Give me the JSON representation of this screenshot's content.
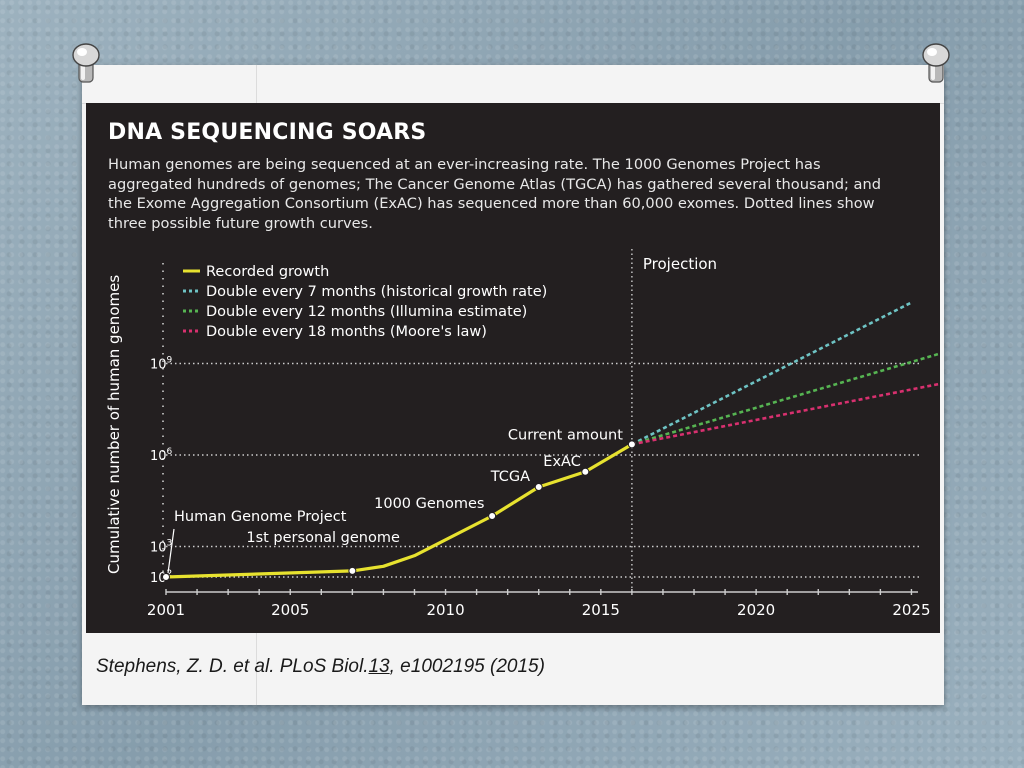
{
  "citation": {
    "prefix": "Stephens, Z. D. et al. PLoS Biol.",
    "volume": "13",
    "suffix": ", e1002195 (2015)"
  },
  "figure": {
    "title": "DNA SEQUENCING SOARS",
    "description_lines": [
      "Human genomes are being sequenced at an ever-increasing rate. The 1000 Genomes Project has",
      "aggregated hundreds of genomes; The Cancer Genome Atlas (TGCA) has gathered several thousand; and",
      "the Exome Aggregation Consortium (ExAC) has sequenced more than 60,000 exomes. Dotted lines show",
      "three possible future growth curves."
    ]
  },
  "chart_data": {
    "type": "line",
    "title": "DNA SEQUENCING SOARS",
    "xlabel": "",
    "ylabel": "Cumulative number of human genomes",
    "y_scale": "log10",
    "xlim": [
      2001,
      2026
    ],
    "ylim_log10": [
      2,
      10
    ],
    "x_ticks": [
      2001,
      2005,
      2010,
      2015,
      2020,
      2025
    ],
    "x_tick_labels": [
      "2001",
      "2005",
      "2010",
      "2015",
      "2020",
      "2025"
    ],
    "y_ticks_log10": [
      2,
      3,
      6,
      9
    ],
    "y_tick_labels": [
      {
        "base": "10",
        "exp": "2"
      },
      {
        "base": "10",
        "exp": "3"
      },
      {
        "base": "10",
        "exp": "6"
      },
      {
        "base": "10",
        "exp": "9"
      }
    ],
    "grid": "dotted horizontal at labeled ticks",
    "projection_year": 2016,
    "projection_label": "Projection",
    "legend_position": "top-left",
    "colors": {
      "background": "#231f20",
      "recorded": "#e7e22f",
      "double_7": "#6ec3c4",
      "double_12": "#56b452",
      "double_18": "#d8306f",
      "text": "#ffffff",
      "grid": "#cccccc"
    },
    "series": [
      {
        "name": "Recorded growth",
        "style": "solid",
        "points": [
          {
            "x": 2001,
            "y_log10": 2.0
          },
          {
            "x": 2007,
            "y_log10": 2.2
          },
          {
            "x": 2008,
            "y_log10": 2.35
          },
          {
            "x": 2009,
            "y_log10": 2.7
          },
          {
            "x": 2011.5,
            "y_log10": 4.0
          },
          {
            "x": 2013,
            "y_log10": 4.95
          },
          {
            "x": 2014.5,
            "y_log10": 5.45
          },
          {
            "x": 2016,
            "y_log10": 6.35
          }
        ]
      },
      {
        "name": "Double every 7 months (historical growth rate)",
        "style": "dotted",
        "points": [
          {
            "x": 2016,
            "y_log10": 6.35
          },
          {
            "x": 2025,
            "y_log10": 11.0
          }
        ]
      },
      {
        "name": "Double every 12 months (Illumina estimate)",
        "style": "dotted",
        "points": [
          {
            "x": 2016,
            "y_log10": 6.35
          },
          {
            "x": 2026,
            "y_log10": 9.35
          }
        ]
      },
      {
        "name": "Double every 18 months (Moore's law)",
        "style": "dotted",
        "points": [
          {
            "x": 2016,
            "y_log10": 6.35
          },
          {
            "x": 2026,
            "y_log10": 8.35
          }
        ]
      }
    ],
    "annotations": [
      {
        "label": "Human Genome Project",
        "x": 2001,
        "y_log10": 2.0
      },
      {
        "label": "1st personal genome",
        "x": 2007,
        "y_log10": 2.2
      },
      {
        "label": "1000 Genomes",
        "x": 2011.5,
        "y_log10": 4.0
      },
      {
        "label": "TCGA",
        "x": 2013,
        "y_log10": 4.95
      },
      {
        "label": "ExAC",
        "x": 2014.5,
        "y_log10": 5.45
      },
      {
        "label": "Current amount",
        "x": 2016,
        "y_log10": 6.35
      }
    ]
  }
}
